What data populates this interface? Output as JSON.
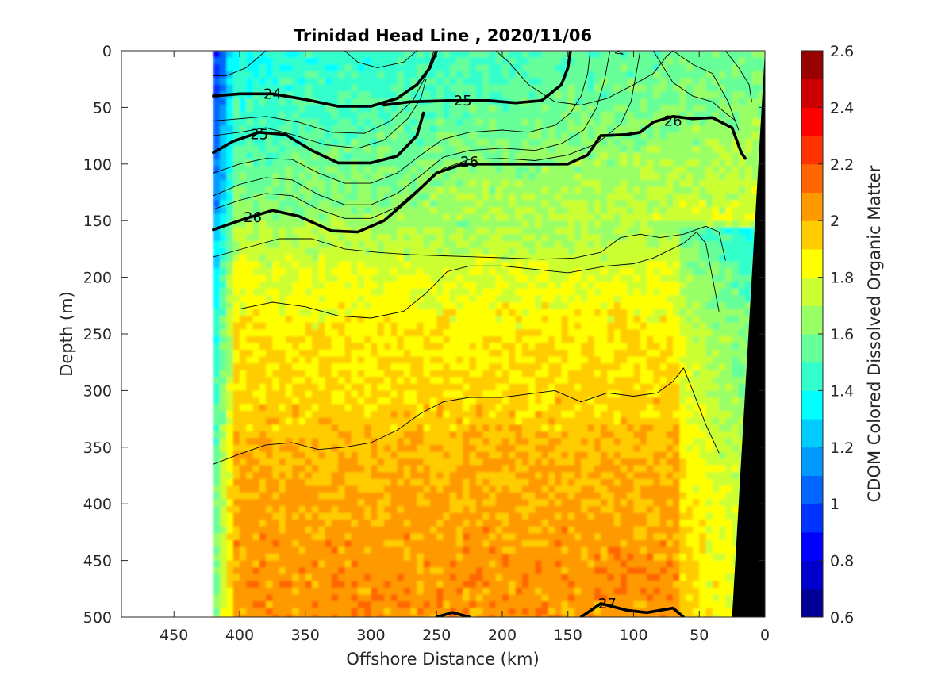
{
  "chart_data": {
    "type": "heatmap",
    "title": "Trinidad Head Line , 2020/11/06",
    "xlabel": "Offshore Distance (km)",
    "ylabel": "Depth (m)",
    "xlim": [
      490,
      0
    ],
    "ylim": [
      0,
      500
    ],
    "x_reversed": true,
    "y_reversed": true,
    "x_ticks": [
      450,
      400,
      350,
      300,
      250,
      200,
      150,
      100,
      50,
      0
    ],
    "x_tick_labels": [
      "450",
      "400",
      "350",
      "300",
      "250",
      "200",
      "150",
      "100",
      "50",
      "0"
    ],
    "y_ticks": [
      0,
      50,
      100,
      150,
      200,
      250,
      300,
      350,
      400,
      450,
      500
    ],
    "y_tick_labels": [
      "0",
      "50",
      "100",
      "150",
      "200",
      "250",
      "300",
      "350",
      "400",
      "450",
      "500"
    ],
    "data_extent_km": [
      420,
      0
    ],
    "colorbar": {
      "label": "CDOM Colored Dissolved Organic Matter",
      "range": [
        0.6,
        2.6
      ],
      "ticks": [
        0.6,
        0.8,
        1,
        1.2,
        1.4,
        1.6,
        1.8,
        2,
        2.2,
        2.4,
        2.6
      ],
      "tick_labels": [
        "0.6",
        "0.8",
        "1",
        "1.2",
        "1.4",
        "1.6",
        "1.8",
        "2",
        "2.2",
        "2.4",
        "2.6"
      ],
      "colormap": "jet",
      "levels": 20
    },
    "field": {
      "description_depth_profile": [
        {
          "depth": 0,
          "value": 1.45
        },
        {
          "depth": 50,
          "value": 1.5
        },
        {
          "depth": 100,
          "value": 1.58
        },
        {
          "depth": 150,
          "value": 1.66
        },
        {
          "depth": 200,
          "value": 1.8
        },
        {
          "depth": 250,
          "value": 1.88
        },
        {
          "depth": 300,
          "value": 1.92
        },
        {
          "depth": 350,
          "value": 1.98
        },
        {
          "depth": 400,
          "value": 2.02
        },
        {
          "depth": 450,
          "value": 2.05
        },
        {
          "depth": 500,
          "value": 2.06
        }
      ]
    },
    "density_contours": [
      {
        "level": 24,
        "bold": true,
        "label": "24",
        "points": [
          [
            420,
            40
          ],
          [
            400,
            38
          ],
          [
            375,
            38
          ],
          [
            350,
            43
          ],
          [
            325,
            49
          ],
          [
            300,
            49
          ],
          [
            280,
            42
          ],
          [
            265,
            30
          ],
          [
            255,
            15
          ],
          [
            250,
            0
          ]
        ]
      },
      {
        "level": 25,
        "bold": true,
        "label": "25",
        "points": [
          [
            290,
            48
          ],
          [
            270,
            45
          ],
          [
            240,
            44
          ],
          [
            210,
            44
          ],
          [
            190,
            46
          ],
          [
            170,
            44
          ],
          [
            155,
            30
          ],
          [
            150,
            15
          ],
          [
            148,
            0
          ]
        ]
      },
      {
        "level": 25,
        "bold": true,
        "label": "25",
        "points": [
          [
            420,
            90
          ],
          [
            405,
            80
          ],
          [
            385,
            72
          ],
          [
            365,
            74
          ],
          [
            345,
            88
          ],
          [
            325,
            99
          ],
          [
            300,
            99
          ],
          [
            280,
            93
          ],
          [
            265,
            75
          ],
          [
            260,
            55
          ]
        ]
      },
      {
        "level": 26,
        "bold": true,
        "label": "26",
        "points": [
          [
            420,
            158
          ],
          [
            395,
            148
          ],
          [
            375,
            141
          ],
          [
            355,
            146
          ],
          [
            330,
            159
          ],
          [
            310,
            160
          ],
          [
            290,
            150
          ],
          [
            270,
            130
          ],
          [
            250,
            108
          ],
          [
            230,
            100
          ],
          [
            210,
            100
          ],
          [
            180,
            100
          ],
          [
            150,
            100
          ],
          [
            135,
            92
          ],
          [
            125,
            75
          ],
          [
            105,
            74
          ],
          [
            95,
            72
          ],
          [
            85,
            63
          ],
          [
            70,
            58
          ],
          [
            55,
            60
          ],
          [
            40,
            59
          ],
          [
            25,
            68
          ],
          [
            18,
            90
          ],
          [
            15,
            95
          ]
        ]
      },
      {
        "level": 27,
        "bold": true,
        "label": "27",
        "points": [
          [
            250,
            500
          ],
          [
            238,
            496
          ],
          [
            225,
            500
          ]
        ]
      },
      {
        "level": 27,
        "bold": true,
        "label": "27",
        "points": [
          [
            140,
            500
          ],
          [
            125,
            488
          ],
          [
            105,
            494
          ],
          [
            90,
            496
          ],
          [
            70,
            492
          ],
          [
            62,
            500
          ]
        ]
      },
      {
        "level": 26.5,
        "bold": false,
        "label": "",
        "points": [
          [
            420,
            182
          ],
          [
            395,
            174
          ],
          [
            370,
            166
          ],
          [
            345,
            166
          ],
          [
            320,
            175
          ],
          [
            295,
            178
          ],
          [
            270,
            180
          ],
          [
            245,
            181
          ],
          [
            220,
            182
          ],
          [
            195,
            183
          ],
          [
            170,
            184
          ],
          [
            145,
            183
          ],
          [
            125,
            178
          ],
          [
            110,
            165
          ],
          [
            95,
            162
          ],
          [
            80,
            165
          ],
          [
            62,
            162
          ],
          [
            45,
            155
          ],
          [
            35,
            160
          ],
          [
            30,
            185
          ]
        ]
      },
      {
        "level": 26.7,
        "bold": false,
        "label": "",
        "points": [
          [
            420,
            228
          ],
          [
            400,
            228
          ],
          [
            375,
            222
          ],
          [
            350,
            226
          ],
          [
            325,
            234
          ],
          [
            300,
            236
          ],
          [
            275,
            230
          ],
          [
            258,
            214
          ],
          [
            242,
            195
          ],
          [
            225,
            190
          ],
          [
            200,
            190
          ],
          [
            175,
            193
          ],
          [
            150,
            196
          ],
          [
            120,
            190
          ],
          [
            100,
            188
          ],
          [
            85,
            183
          ],
          [
            62,
            170
          ],
          [
            52,
            160
          ],
          [
            45,
            170
          ],
          [
            35,
            230
          ]
        ]
      },
      {
        "level": 26.8,
        "bold": false,
        "label": "",
        "points": [
          [
            420,
            365
          ],
          [
            400,
            356
          ],
          [
            380,
            348
          ],
          [
            360,
            346
          ],
          [
            340,
            352
          ],
          [
            320,
            350
          ],
          [
            300,
            346
          ],
          [
            280,
            335
          ],
          [
            262,
            320
          ],
          [
            245,
            310
          ],
          [
            225,
            306
          ],
          [
            200,
            306
          ],
          [
            180,
            303
          ],
          [
            160,
            300
          ],
          [
            140,
            310
          ],
          [
            120,
            302
          ],
          [
            100,
            305
          ],
          [
            82,
            302
          ],
          [
            70,
            292
          ],
          [
            62,
            280
          ],
          [
            55,
            300
          ],
          [
            45,
            330
          ],
          [
            35,
            355
          ]
        ]
      },
      {
        "level": 24.3,
        "bold": false,
        "label": "",
        "points": [
          [
            420,
            62
          ],
          [
            400,
            60
          ],
          [
            380,
            58
          ],
          [
            355,
            63
          ],
          [
            330,
            72
          ],
          [
            305,
            73
          ],
          [
            285,
            62
          ],
          [
            268,
            44
          ],
          [
            258,
            22
          ],
          [
            252,
            0
          ]
        ]
      },
      {
        "level": 24.6,
        "bold": false,
        "label": "",
        "points": [
          [
            420,
            75
          ],
          [
            400,
            72
          ],
          [
            380,
            68
          ],
          [
            360,
            74
          ],
          [
            335,
            83
          ],
          [
            310,
            86
          ],
          [
            290,
            79
          ],
          [
            272,
            60
          ],
          [
            262,
            42
          ],
          [
            258,
            25
          ]
        ]
      },
      {
        "level": 25.3,
        "bold": false,
        "label": "",
        "points": [
          [
            420,
            108
          ],
          [
            400,
            100
          ],
          [
            380,
            95
          ],
          [
            360,
            96
          ],
          [
            340,
            108
          ],
          [
            320,
            117
          ],
          [
            300,
            117
          ],
          [
            280,
            108
          ],
          [
            262,
            92
          ],
          [
            245,
            78
          ],
          [
            225,
            72
          ],
          [
            200,
            70
          ],
          [
            180,
            72
          ],
          [
            160,
            66
          ],
          [
            148,
            55
          ],
          [
            140,
            40
          ],
          [
            135,
            20
          ],
          [
            133,
            0
          ]
        ]
      },
      {
        "level": 25.6,
        "bold": false,
        "label": "",
        "points": [
          [
            420,
            128
          ],
          [
            400,
            118
          ],
          [
            380,
            112
          ],
          [
            360,
            114
          ],
          [
            340,
            127
          ],
          [
            320,
            136
          ],
          [
            300,
            136
          ],
          [
            280,
            126
          ],
          [
            262,
            110
          ],
          [
            245,
            94
          ],
          [
            225,
            88
          ],
          [
            200,
            86
          ],
          [
            175,
            88
          ],
          [
            155,
            82
          ],
          [
            138,
            70
          ],
          [
            128,
            50
          ],
          [
            122,
            25
          ],
          [
            118,
            0
          ]
        ]
      },
      {
        "level": 25.8,
        "bold": false,
        "label": "",
        "points": [
          [
            420,
            140
          ],
          [
            400,
            132
          ],
          [
            380,
            126
          ],
          [
            360,
            128
          ],
          [
            340,
            140
          ],
          [
            320,
            148
          ],
          [
            300,
            148
          ],
          [
            280,
            138
          ],
          [
            262,
            120
          ],
          [
            245,
            104
          ],
          [
            225,
            96
          ],
          [
            200,
            95
          ],
          [
            175,
            97
          ],
          [
            150,
            92
          ],
          [
            128,
            82
          ],
          [
            110,
            65
          ],
          [
            102,
            45
          ],
          [
            98,
            20
          ],
          [
            95,
            0
          ]
        ]
      },
      {
        "level": 26.2,
        "bold": false,
        "label": "",
        "points": [
          [
            205,
            0
          ],
          [
            195,
            10
          ],
          [
            180,
            30
          ],
          [
            160,
            45
          ],
          [
            140,
            48
          ],
          [
            120,
            42
          ],
          [
            100,
            30
          ],
          [
            85,
            20
          ],
          [
            75,
            5
          ],
          [
            70,
            0
          ]
        ]
      },
      {
        "level": 26.2,
        "bold": false,
        "label": "",
        "points": [
          [
            420,
            22
          ],
          [
            410,
            22
          ],
          [
            395,
            15
          ],
          [
            385,
            5
          ],
          [
            380,
            0
          ]
        ]
      },
      {
        "level": 26.1,
        "bold": false,
        "label": "",
        "points": [
          [
            265,
            0
          ],
          [
            275,
            10
          ],
          [
            295,
            15
          ],
          [
            310,
            10
          ],
          [
            320,
            0
          ]
        ]
      },
      {
        "level": 26.25,
        "bold": false,
        "label": "",
        "points": [
          [
            70,
            0
          ],
          [
            55,
            12
          ],
          [
            40,
            20
          ],
          [
            28,
            45
          ],
          [
            20,
            70
          ]
        ]
      },
      {
        "level": 26.3,
        "bold": false,
        "label": "",
        "points": [
          [
            85,
            0
          ],
          [
            70,
            28
          ],
          [
            55,
            40
          ],
          [
            40,
            45
          ],
          [
            30,
            55
          ],
          [
            22,
            62
          ]
        ]
      },
      {
        "level": 26.35,
        "bold": false,
        "label": "",
        "points": [
          [
            30,
            0
          ],
          [
            20,
            15
          ],
          [
            12,
            30
          ],
          [
            10,
            45
          ]
        ]
      },
      {
        "level": 26.4,
        "bold": false,
        "label": "",
        "points": [
          [
            112,
            0
          ],
          [
            108,
            3
          ],
          [
            114,
            2
          ],
          [
            112,
            0
          ]
        ]
      }
    ],
    "contour_labels": [
      {
        "text": "24",
        "x": 375,
        "y": 38
      },
      {
        "text": "25",
        "x": 230,
        "y": 44
      },
      {
        "text": "25",
        "x": 385,
        "y": 74
      },
      {
        "text": "26",
        "x": 225,
        "y": 98
      },
      {
        "text": "26",
        "x": 70,
        "y": 62
      },
      {
        "text": "26",
        "x": 390,
        "y": 147
      },
      {
        "text": "27",
        "x": 120,
        "y": 488
      }
    ],
    "bathymetry": {
      "color": "#000000",
      "points": [
        [
          0,
          0
        ],
        [
          25,
          500
        ],
        [
          0,
          500
        ]
      ]
    }
  }
}
